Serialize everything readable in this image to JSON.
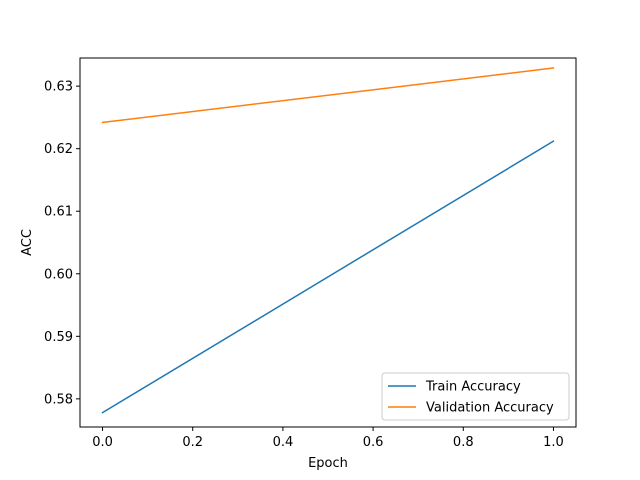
{
  "chart_data": {
    "type": "line",
    "title": "",
    "xlabel": "Epoch",
    "ylabel": "ACC",
    "xlim": [
      -0.05,
      1.05
    ],
    "ylim": [
      0.5755,
      0.6345
    ],
    "x_ticks": [
      0.0,
      0.2,
      0.4,
      0.6,
      0.8,
      1.0
    ],
    "x_tick_labels": [
      "0.0",
      "0.2",
      "0.4",
      "0.6",
      "0.8",
      "1.0"
    ],
    "y_ticks": [
      0.58,
      0.59,
      0.6,
      0.61,
      0.62,
      0.63
    ],
    "y_tick_labels": [
      "0.58",
      "0.59",
      "0.60",
      "0.61",
      "0.62",
      "0.63"
    ],
    "grid": false,
    "legend_position": "lower-right",
    "series": [
      {
        "name": "Train Accuracy",
        "color": "#1f77b4",
        "x": [
          0,
          1
        ],
        "y": [
          0.5778,
          0.6212
        ]
      },
      {
        "name": "Validation Accuracy",
        "color": "#ff7f0e",
        "x": [
          0,
          1
        ],
        "y": [
          0.6242,
          0.6329
        ]
      }
    ]
  }
}
